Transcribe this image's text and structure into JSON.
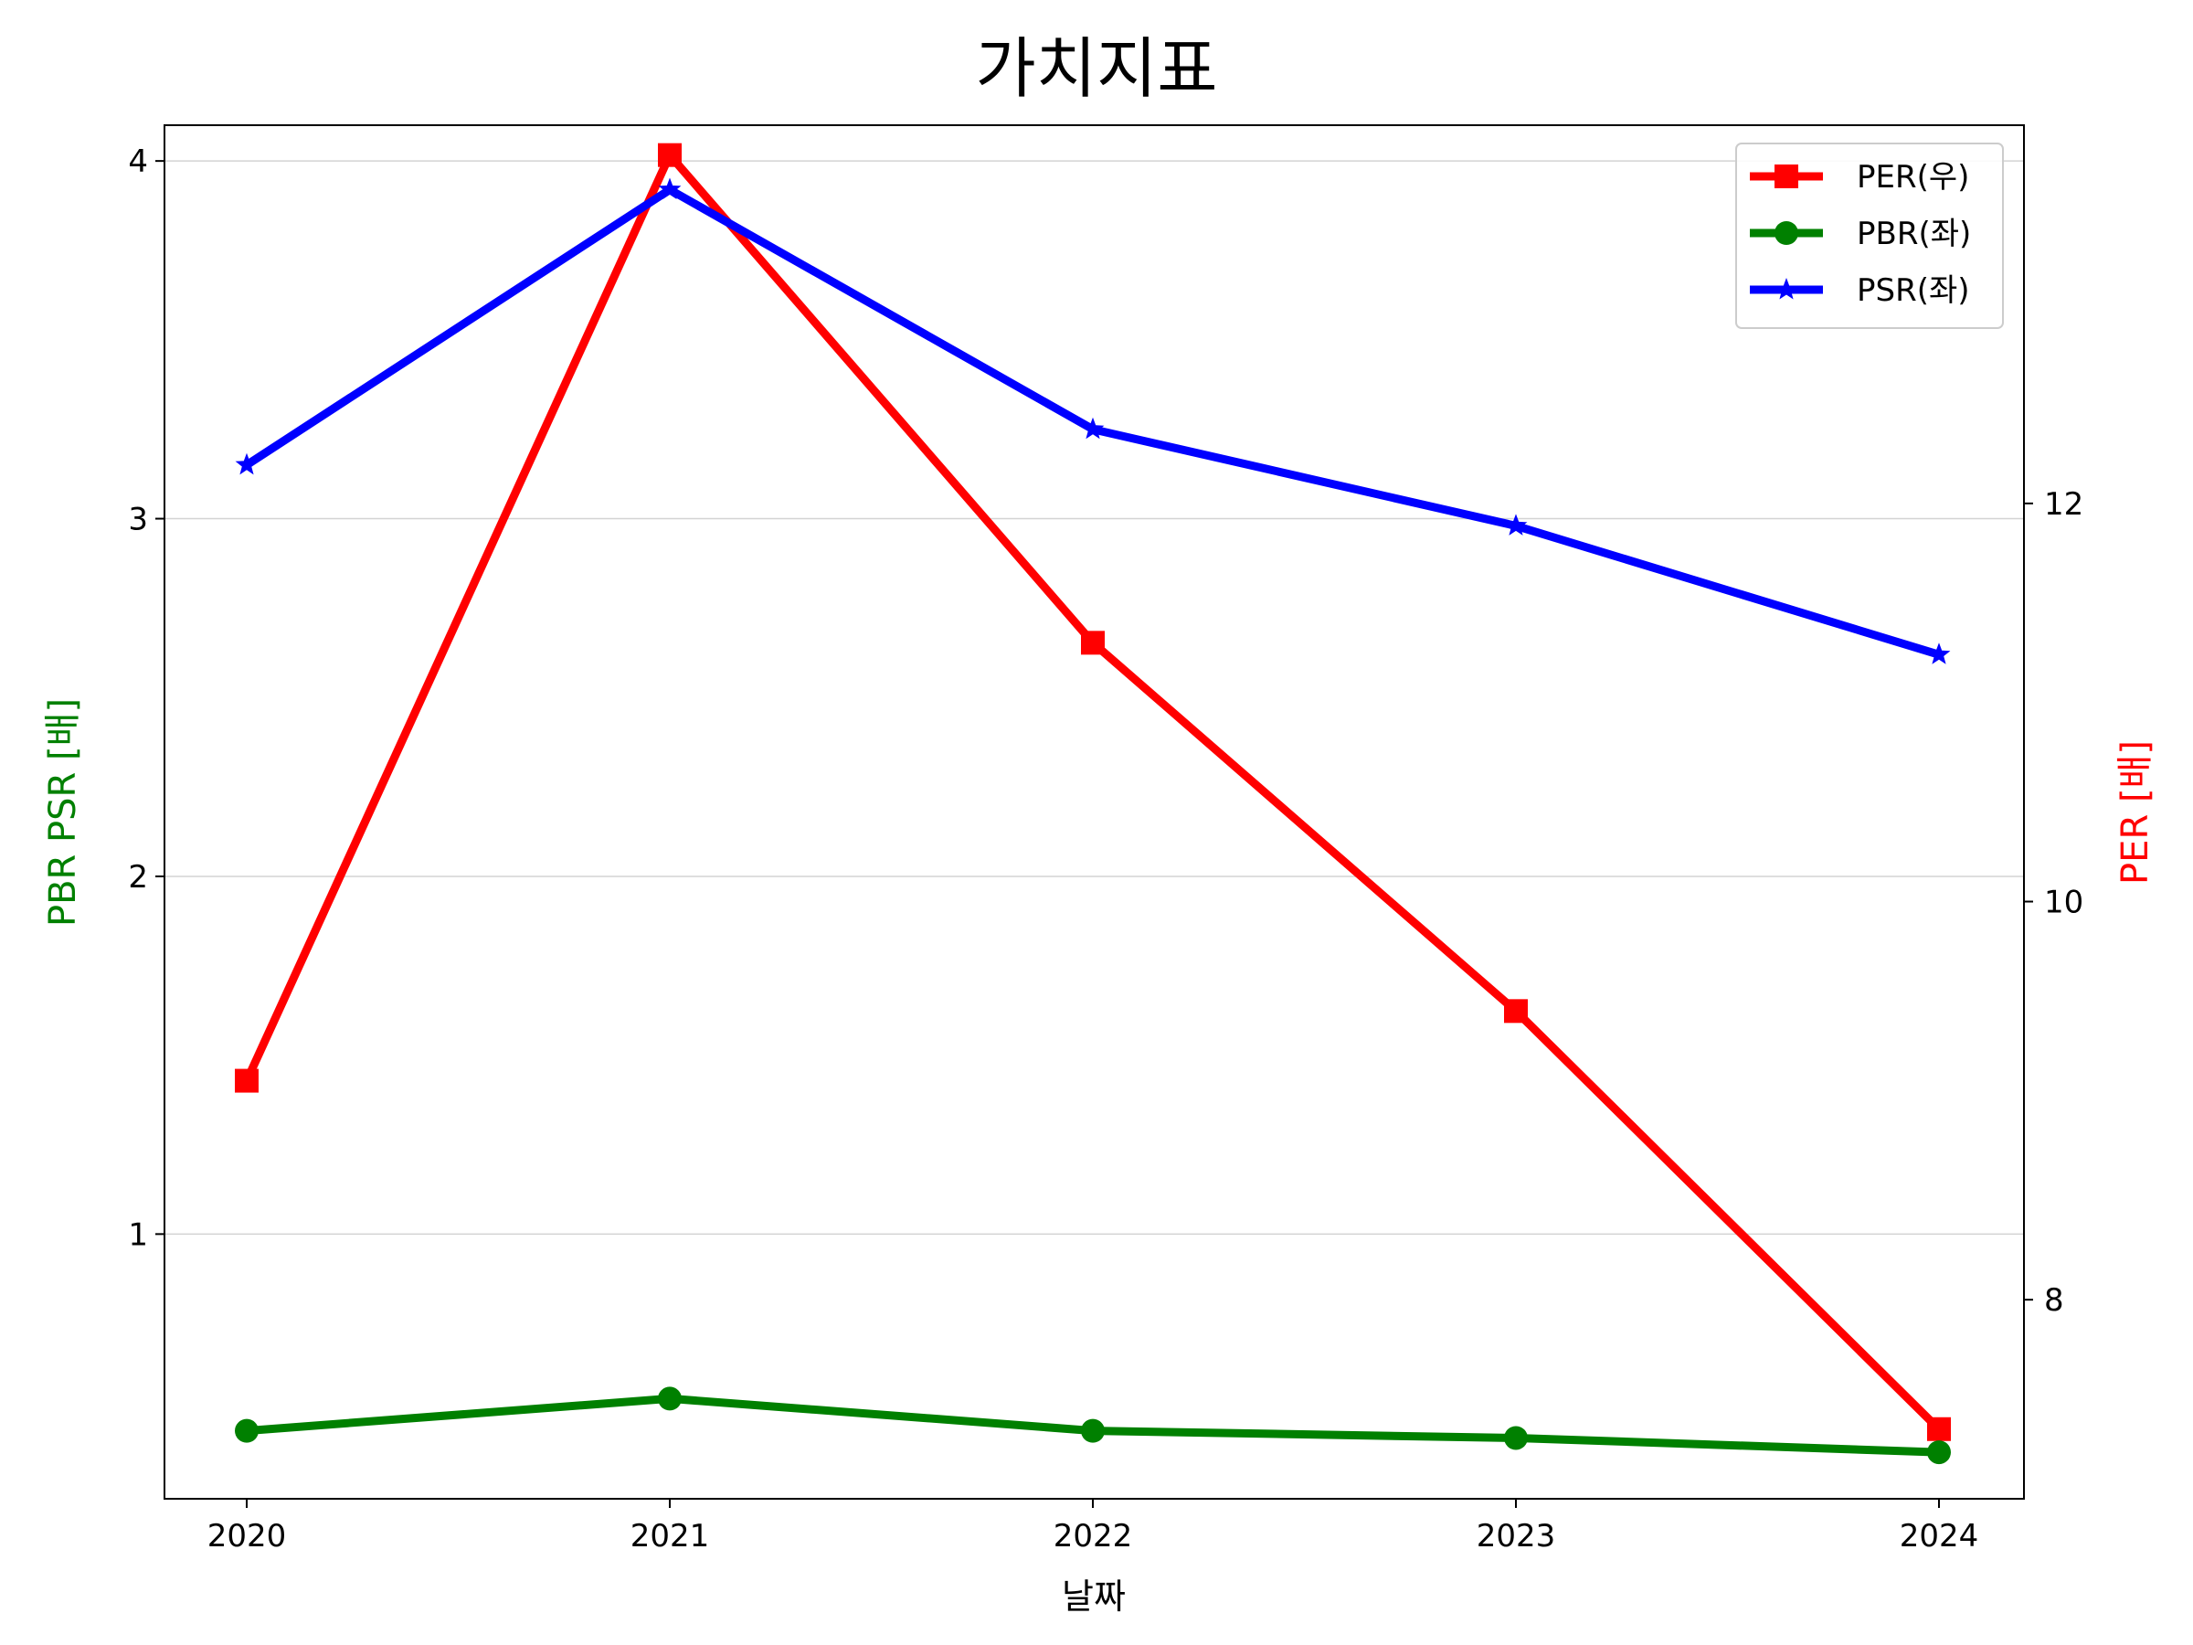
{
  "chart_data": {
    "type": "line",
    "title": "가치지표",
    "xlabel": "날짜",
    "ylabel_left": "PBR PSR [배]",
    "ylabel_right": "PER [배]",
    "categories": [
      "2020",
      "2021",
      "2022",
      "2023",
      "2024"
    ],
    "yaxis_left": {
      "ylim": [
        0.26,
        4.1
      ],
      "ticks": [
        1,
        2,
        3,
        4
      ],
      "grid": true,
      "label_color": "#008000"
    },
    "yaxis_right": {
      "ylim": [
        7.0,
        13.9
      ],
      "ticks": [
        8,
        10,
        12
      ],
      "label_color": "#ff0000"
    },
    "series": [
      {
        "name": "PER(우)",
        "axis": "right",
        "color": "#ff0000",
        "marker": "square",
        "values": [
          9.1,
          13.75,
          11.3,
          9.45,
          7.35
        ]
      },
      {
        "name": "PBR(좌)",
        "axis": "left",
        "color": "#008000",
        "marker": "circle",
        "values": [
          0.45,
          0.54,
          0.45,
          0.43,
          0.39
        ]
      },
      {
        "name": "PSR(좌)",
        "axis": "left",
        "color": "#0000ff",
        "marker": "star",
        "values": [
          3.15,
          3.92,
          3.25,
          2.98,
          2.62
        ]
      }
    ],
    "legend_position": "top-right"
  }
}
